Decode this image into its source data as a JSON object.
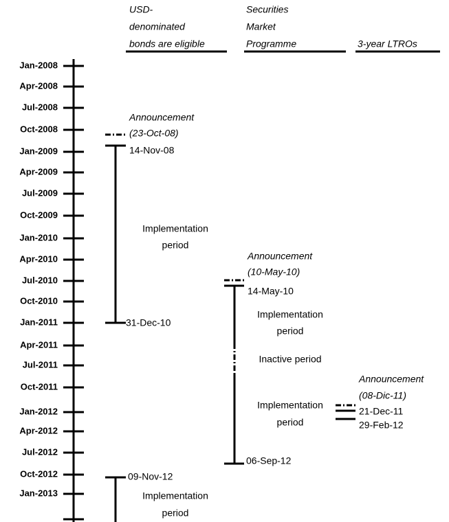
{
  "axis": {
    "labels": [
      "Jan-2008",
      "Apr-2008",
      "Jul-2008",
      "Oct-2008",
      "Jan-2009",
      "Apr-2009",
      "Jul-2009",
      "Oct-2009",
      "Jan-2010",
      "Apr-2010",
      "Jul-2010",
      "Oct-2010",
      "Jan-2011",
      "Apr-2011",
      "Jul-2011",
      "Oct-2011",
      "Jan-2012",
      "Apr-2012",
      "Jul-2012",
      "Oct-2012",
      "Jan-2013"
    ]
  },
  "columns": [
    {
      "header": [
        "USD-",
        "denominated",
        "bonds are eligible"
      ],
      "announcement": [
        "Announcement",
        "(23-Oct-08)"
      ],
      "start": "14-Nov-08",
      "period": [
        "Implementation",
        "period"
      ],
      "end": "31-Dec-10",
      "start2": "09-Nov-12",
      "period2": [
        "Implementation",
        "period"
      ]
    },
    {
      "header": [
        "Securities",
        "Market",
        "Programme"
      ],
      "announcement": [
        "Announcement",
        "(10-May-10)"
      ],
      "start": "14-May-10",
      "period": [
        "Implementation",
        "period"
      ],
      "inactive": "Inactive period",
      "period2": [
        "Implementation",
        "period"
      ],
      "end": "06-Sep-12"
    },
    {
      "header": [
        "3-year LTROs"
      ],
      "announcement": [
        "Announcement",
        "(08-Dic-11)"
      ],
      "dates": [
        "21-Dec-11",
        "29-Feb-12"
      ]
    }
  ]
}
